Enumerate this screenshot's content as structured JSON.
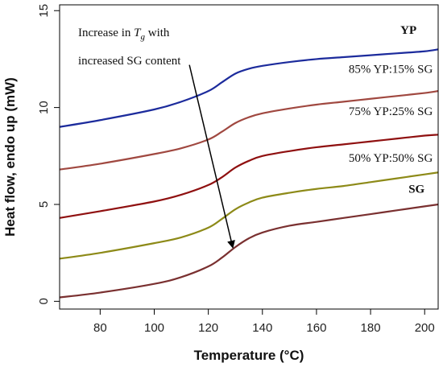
{
  "chart_data": {
    "type": "line",
    "title": "",
    "xlabel": "Temperature (°C)",
    "ylabel": "Heat flow, endo up (mW)",
    "xlim": [
      65,
      205
    ],
    "ylim": [
      -0.4,
      15.3
    ],
    "xticks": [
      80,
      100,
      120,
      140,
      160,
      180,
      200
    ],
    "yticks": [
      0,
      5,
      10,
      15
    ],
    "grid": false,
    "legend": "none",
    "series": [
      {
        "name": "YP",
        "color": "#1c2b9c",
        "x": [
          65,
          80,
          100,
          110,
          120,
          125,
          130,
          135,
          140,
          150,
          160,
          170,
          180,
          190,
          200,
          205
        ],
        "y": [
          9.0,
          9.35,
          9.9,
          10.3,
          10.85,
          11.3,
          11.75,
          12.0,
          12.15,
          12.35,
          12.5,
          12.6,
          12.7,
          12.8,
          12.9,
          13.0
        ]
      },
      {
        "name": "85% YP:15% SG",
        "color": "#a04840",
        "x": [
          65,
          80,
          100,
          110,
          120,
          125,
          130,
          135,
          140,
          150,
          160,
          170,
          180,
          190,
          200,
          205
        ],
        "y": [
          6.8,
          7.1,
          7.6,
          7.9,
          8.35,
          8.75,
          9.2,
          9.5,
          9.7,
          9.95,
          10.15,
          10.3,
          10.45,
          10.6,
          10.75,
          10.85
        ]
      },
      {
        "name": "75% YP:25% SG",
        "color": "#8f1010",
        "x": [
          65,
          80,
          100,
          110,
          120,
          125,
          130,
          135,
          140,
          150,
          160,
          170,
          180,
          190,
          200,
          205
        ],
        "y": [
          4.3,
          4.65,
          5.15,
          5.5,
          6.0,
          6.4,
          6.9,
          7.25,
          7.5,
          7.75,
          7.95,
          8.1,
          8.25,
          8.4,
          8.55,
          8.6
        ]
      },
      {
        "name": "50% YP:50% SG",
        "color": "#8d8a18",
        "x": [
          65,
          80,
          100,
          110,
          120,
          125,
          130,
          135,
          140,
          150,
          160,
          170,
          180,
          190,
          200,
          205
        ],
        "y": [
          2.2,
          2.5,
          3.0,
          3.3,
          3.8,
          4.25,
          4.75,
          5.1,
          5.35,
          5.6,
          5.8,
          5.95,
          6.15,
          6.35,
          6.55,
          6.65
        ]
      },
      {
        "name": "SG",
        "color": "#7a3030",
        "x": [
          65,
          80,
          100,
          110,
          120,
          125,
          130,
          135,
          140,
          150,
          160,
          170,
          180,
          190,
          200,
          205
        ],
        "y": [
          0.2,
          0.45,
          0.9,
          1.25,
          1.8,
          2.25,
          2.8,
          3.25,
          3.55,
          3.9,
          4.1,
          4.3,
          4.5,
          4.7,
          4.9,
          5.0
        ]
      }
    ],
    "series_labels": [
      {
        "text": "YP",
        "x": 197,
        "y": 13.8,
        "bold": true
      },
      {
        "text": "85% YP:15% SG",
        "x": 203,
        "y": 11.8,
        "bold": false
      },
      {
        "text": "75% YP:25% SG",
        "x": 203,
        "y": 9.6,
        "bold": false
      },
      {
        "text": "50% YP:50% SG",
        "x": 203,
        "y": 7.2,
        "bold": false
      },
      {
        "text": "SG",
        "x": 200,
        "y": 5.6,
        "bold": true
      }
    ],
    "annotation": {
      "line1_prefix": "Increase in ",
      "line1_var": "T",
      "line1_sub": "g",
      "line1_suffix": " with",
      "line2": "increased SG content",
      "arrow_from": [
        113,
        12.2
      ],
      "arrow_to": [
        129,
        2.8
      ]
    }
  }
}
